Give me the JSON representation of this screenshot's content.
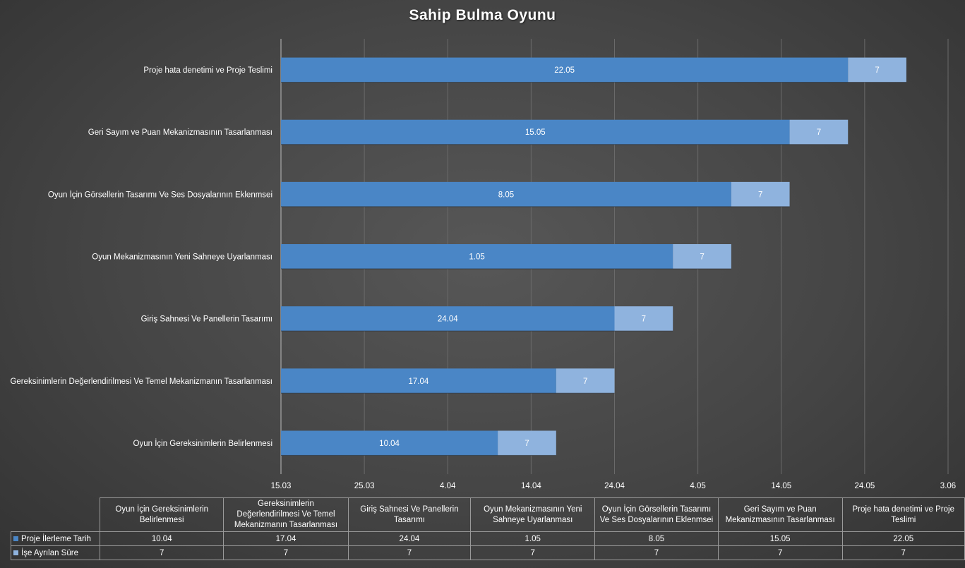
{
  "chart_data": {
    "type": "bar",
    "orientation": "horizontal",
    "stacked": true,
    "title": "Sahip Bulma Oyunu",
    "categories": [
      "Oyun İçin Gereksinimlerin Belirlenmesi",
      "Gereksinimlerin Değerlendirilmesi Ve Temel Mekanizmanın Tasarlanması",
      "Giriş Sahnesi  Ve Panellerin Tasarımı",
      "Oyun Mekanizmasının Yeni Sahneye Uyarlanması",
      "Oyun İçin Görsellerin Tasarımı Ve Ses Dosyalarının Eklenmsei",
      "Geri Sayım ve Puan Mekanizmasının Tasarlanması",
      "Proje hata denetimi ve Proje Teslimi"
    ],
    "table_headers": [
      "Oyun İçin Gereksinimlerin Belirlenmesi",
      "Gereksinimlerin Değerlendirilmesi Ve Temel Mekanizmanın Tasarlanması",
      "Giriş Sahnesi  Ve Panellerin Tasarımı",
      "Oyun Mekanizmasının Yeni Sahneye Uyarlanması",
      "Oyun İçin Görsellerin Tasarımı Ve Ses Dosyalarının Eklenmsei",
      "Geri Sayım ve Puan Mekanizmasının Tasarlanması",
      "Proje hata denetimi ve Proje Teslimi"
    ],
    "series": [
      {
        "name": "Proje İlerleme Tarih",
        "color": "#4a86c6",
        "values": [
          "2024-04-10",
          "2024-04-17",
          "2024-04-24",
          "2024-05-01",
          "2024-05-08",
          "2024-05-15",
          "2024-05-22"
        ],
        "labels": [
          "10.04",
          "17.04",
          "24.04",
          "1.05",
          "8.05",
          "15.05",
          "22.05"
        ]
      },
      {
        "name": "İşe Ayrılan Süre",
        "color": "#8fb3de",
        "values": [
          7,
          7,
          7,
          7,
          7,
          7,
          7
        ],
        "labels": [
          "7",
          "7",
          "7",
          "7",
          "7",
          "7",
          "7"
        ]
      }
    ],
    "x_axis": {
      "min": "2024-03-15",
      "max": "2024-06-03",
      "tick_labels": [
        "15.03",
        "25.03",
        "4.04",
        "14.04",
        "24.04",
        "4.05",
        "14.05",
        "24.05",
        "3.06"
      ]
    },
    "grid": "vertical",
    "legend": "data-table"
  }
}
